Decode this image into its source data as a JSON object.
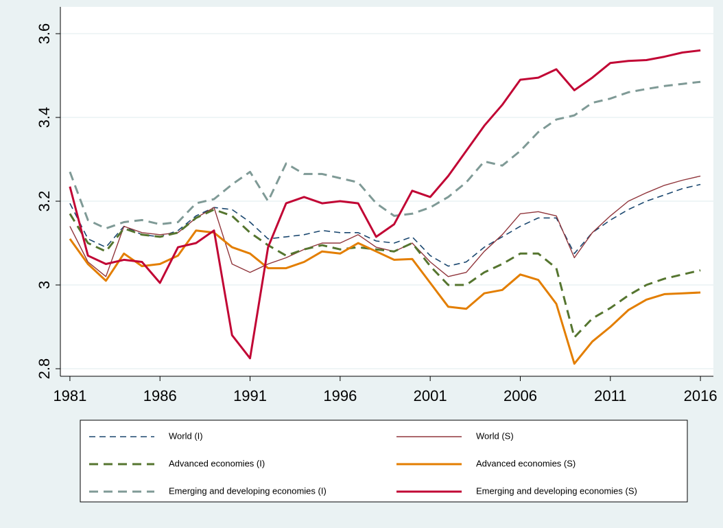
{
  "chart_data": {
    "type": "line",
    "x": [
      1981,
      1982,
      1983,
      1984,
      1985,
      1986,
      1987,
      1988,
      1989,
      1990,
      1991,
      1992,
      1993,
      1994,
      1995,
      1996,
      1997,
      1998,
      1999,
      2000,
      2001,
      2002,
      2003,
      2004,
      2005,
      2006,
      2007,
      2008,
      2009,
      2010,
      2011,
      2012,
      2013,
      2014,
      2015,
      2016
    ],
    "xlim": [
      1980.47,
      2016.72
    ],
    "xticks": [
      1981,
      1986,
      1991,
      1996,
      2001,
      2006,
      2011,
      2016
    ],
    "ylim": [
      2.782,
      3.664
    ],
    "yticks": [
      {
        "value": 2.8,
        "label": "2.8"
      },
      3,
      3.2,
      3.4,
      3.6
    ],
    "grid": true,
    "series": [
      {
        "name": "World (I)",
        "color": "#1a476f",
        "dash": true,
        "values": [
          3.195,
          3.11,
          3.09,
          3.14,
          3.12,
          3.115,
          3.13,
          3.165,
          3.185,
          3.18,
          3.15,
          3.11,
          3.115,
          3.12,
          3.13,
          3.125,
          3.125,
          3.105,
          3.1,
          3.115,
          3.07,
          3.045,
          3.055,
          3.09,
          3.115,
          3.14,
          3.16,
          3.16,
          3.075,
          3.125,
          3.155,
          3.18,
          3.2,
          3.215,
          3.23,
          3.24
        ]
      },
      {
        "name": "World (S)",
        "color": "#90353b",
        "dash": false,
        "values": [
          3.14,
          3.055,
          3.02,
          3.14,
          3.125,
          3.12,
          3.125,
          3.16,
          3.185,
          3.05,
          3.03,
          3.05,
          3.065,
          3.085,
          3.1,
          3.1,
          3.12,
          3.09,
          3.08,
          3.1,
          3.055,
          3.02,
          3.03,
          3.08,
          3.12,
          3.17,
          3.175,
          3.165,
          3.065,
          3.125,
          3.165,
          3.2,
          3.22,
          3.238,
          3.25,
          3.26
        ]
      },
      {
        "name": "Advanced economies (I)",
        "color": "#55752f",
        "dash": true,
        "values": [
          3.17,
          3.1,
          3.08,
          3.135,
          3.12,
          3.115,
          3.125,
          3.16,
          3.18,
          3.165,
          3.125,
          3.095,
          3.07,
          3.085,
          3.095,
          3.085,
          3.09,
          3.085,
          3.08,
          3.1,
          3.045,
          3.0,
          3.0,
          3.03,
          3.05,
          3.075,
          3.075,
          3.04,
          2.875,
          2.92,
          2.945,
          2.975,
          3.0,
          3.015,
          3.025,
          3.035
        ]
      },
      {
        "name": "Advanced economies (S)",
        "color": "#e37e00",
        "dash": false,
        "values": [
          3.11,
          3.05,
          3.01,
          3.075,
          3.045,
          3.05,
          3.07,
          3.13,
          3.125,
          3.09,
          3.075,
          3.04,
          3.04,
          3.055,
          3.08,
          3.075,
          3.1,
          3.08,
          3.06,
          3.062,
          3.005,
          2.948,
          2.943,
          2.98,
          2.988,
          3.025,
          3.012,
          2.955,
          2.812,
          2.865,
          2.9,
          2.94,
          2.965,
          2.978,
          2.98,
          2.982
        ]
      },
      {
        "name": "Emerging and developing economies (I)",
        "color": "#7f9a96",
        "dash": true,
        "values": [
          3.27,
          3.155,
          3.135,
          3.15,
          3.155,
          3.145,
          3.15,
          3.195,
          3.205,
          3.24,
          3.27,
          3.2,
          3.29,
          3.265,
          3.265,
          3.255,
          3.245,
          3.195,
          3.165,
          3.17,
          3.185,
          3.21,
          3.245,
          3.295,
          3.285,
          3.32,
          3.365,
          3.395,
          3.405,
          3.435,
          3.445,
          3.46,
          3.468,
          3.475,
          3.48,
          3.485
        ]
      },
      {
        "name": "Emerging and developing economies (S)",
        "color": "#c10534",
        "dash": false,
        "values": [
          3.235,
          3.07,
          3.05,
          3.06,
          3.055,
          3.005,
          3.09,
          3.1,
          3.13,
          2.88,
          2.825,
          3.09,
          3.195,
          3.21,
          3.195,
          3.2,
          3.195,
          3.115,
          3.145,
          3.225,
          3.21,
          3.26,
          3.32,
          3.38,
          3.43,
          3.49,
          3.495,
          3.515,
          3.465,
          3.495,
          3.53,
          3.535,
          3.537,
          3.545,
          3.555,
          3.56
        ]
      }
    ]
  }
}
